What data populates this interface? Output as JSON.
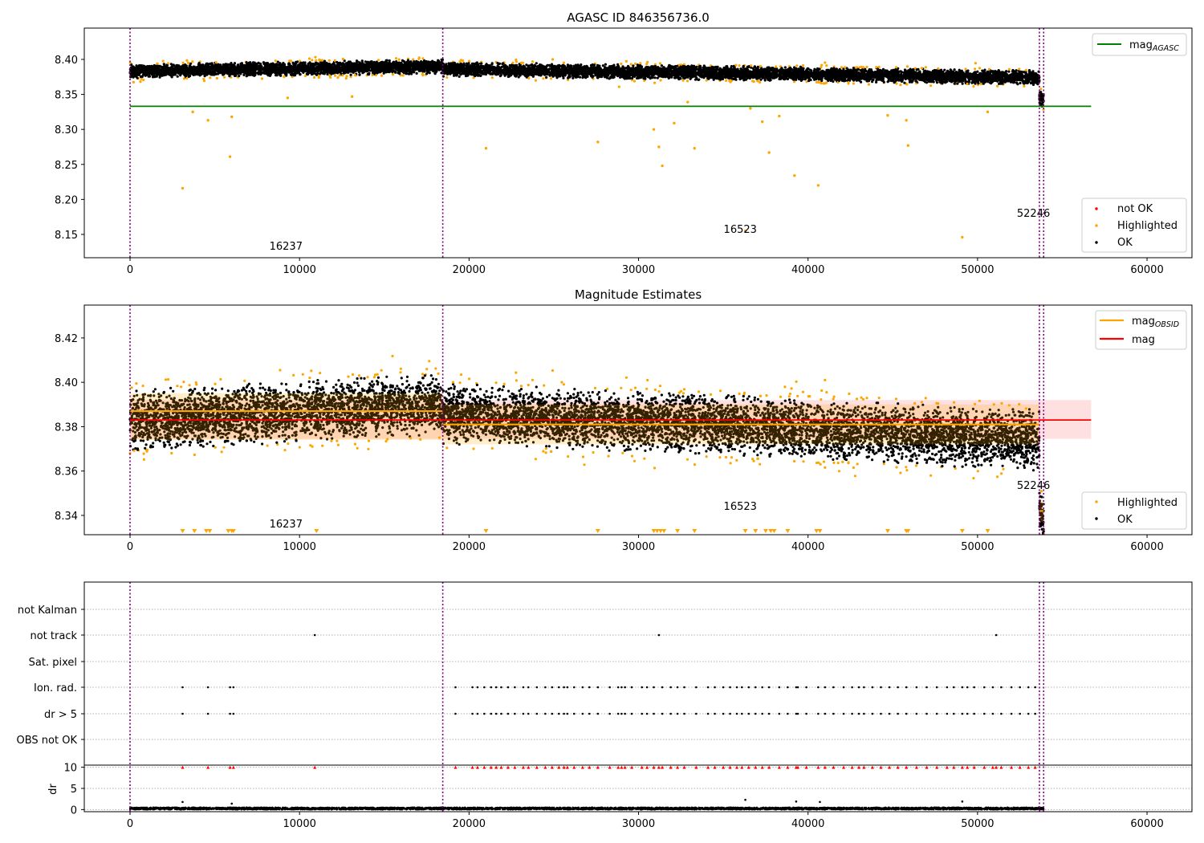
{
  "chart_data": [
    {
      "type": "scatter",
      "title": "AGASC ID 846356736.0",
      "xlim": [
        -2700,
        62650
      ],
      "ylim": [
        8.1167,
        8.4447
      ],
      "xticks": [
        0,
        10000,
        20000,
        30000,
        40000,
        50000,
        60000
      ],
      "yticks": [
        8.15,
        8.2,
        8.25,
        8.3,
        8.35,
        8.4
      ],
      "ytick_labels": [
        "8.15",
        "8.20",
        "8.25",
        "8.30",
        "8.35",
        "8.40"
      ],
      "vlines": [
        0,
        18450,
        53650,
        53900
      ],
      "hline": {
        "name": "mag_AGASC",
        "label": "mag",
        "sub": "AGASC",
        "y": 8.333,
        "xmax": 56700,
        "color": "#008000"
      },
      "segments": [
        {
          "x0": 0,
          "x1": 18450,
          "mean_start": 8.383,
          "mean_end": 8.39,
          "spread": 0.009
        },
        {
          "x0": 18450,
          "x1": 53650,
          "mean_start": 8.386,
          "mean_end": 8.374,
          "spread": 0.009
        },
        {
          "x0": 53650,
          "x1": 53900,
          "mean_start": 8.345,
          "mean_end": 8.34,
          "spread": 0.01
        }
      ],
      "highlighted_outliers": [
        [
          3100,
          8.216
        ],
        [
          5900,
          8.261
        ],
        [
          3700,
          8.325
        ],
        [
          4600,
          8.313
        ],
        [
          6000,
          8.318
        ],
        [
          9300,
          8.345
        ],
        [
          13100,
          8.347
        ],
        [
          21000,
          8.273
        ],
        [
          27600,
          8.282
        ],
        [
          30900,
          8.3
        ],
        [
          31200,
          8.275
        ],
        [
          31400,
          8.248
        ],
        [
          32100,
          8.309
        ],
        [
          33300,
          8.273
        ],
        [
          32900,
          8.339
        ],
        [
          36600,
          8.33
        ],
        [
          37300,
          8.311
        ],
        [
          37700,
          8.267
        ],
        [
          38300,
          8.319
        ],
        [
          39200,
          8.234
        ],
        [
          40600,
          8.22
        ],
        [
          44700,
          8.32
        ],
        [
          45800,
          8.313
        ],
        [
          45900,
          8.277
        ],
        [
          49100,
          8.146
        ],
        [
          50600,
          8.325
        ],
        [
          36300,
          8.155
        ]
      ],
      "annotations": [
        {
          "text": "16237",
          "x": 9200,
          "y": 8.128
        },
        {
          "text": "16523",
          "x": 36000,
          "y": 8.152
        },
        {
          "text": "52246",
          "x": 53300,
          "y": 8.175
        }
      ],
      "legend": {
        "placement": "lower-right",
        "entries": [
          {
            "label": "not OK",
            "color": "#ff0000"
          },
          {
            "label": "Highlighted",
            "color": "#ffa500"
          },
          {
            "label": "OK",
            "color": "#000000"
          }
        ]
      },
      "colors": {
        "ok": "#000000",
        "highlighted": "#ffa500",
        "not_ok": "#ff0000",
        "vline": "#800080"
      }
    },
    {
      "type": "scatter",
      "title": "Magnitude Estimates",
      "xlim": [
        -2700,
        62650
      ],
      "ylim": [
        8.3313,
        8.4348
      ],
      "xticks": [
        0,
        10000,
        20000,
        30000,
        40000,
        50000,
        60000
      ],
      "yticks": [
        8.34,
        8.36,
        8.38,
        8.4,
        8.42
      ],
      "ytick_labels": [
        "8.34",
        "8.36",
        "8.38",
        "8.40",
        "8.42"
      ],
      "vlines": [
        0,
        18450,
        53650,
        53900
      ],
      "mag": {
        "label": "mag",
        "y": 8.383,
        "band": [
          8.3745,
          8.392
        ],
        "xmax": 56700,
        "color": "#ff0000"
      },
      "mag_obsid": {
        "label": "mag",
        "sub": "OBSID",
        "color": "#ffa500",
        "segments": [
          {
            "x0": 0,
            "x1": 18450,
            "y": 8.387,
            "band": [
              8.374,
              8.395
            ]
          },
          {
            "x0": 18450,
            "x1": 53650,
            "y": 8.381,
            "band": [
              8.372,
              8.39
            ]
          },
          {
            "x0": 53650,
            "x1": 53900,
            "y": 8.342,
            "band": [
              8.337,
              8.347
            ]
          }
        ]
      },
      "segments": [
        {
          "x0": 0,
          "x1": 18450,
          "mean_start": 8.383,
          "mean_end": 8.39,
          "spread": 0.012
        },
        {
          "x0": 18450,
          "x1": 53650,
          "mean_start": 8.386,
          "mean_end": 8.374,
          "spread": 0.012
        },
        {
          "x0": 53650,
          "x1": 53900,
          "mean_start": 8.343,
          "mean_end": 8.338,
          "spread": 0.008
        }
      ],
      "below_range_x": [
        3100,
        3800,
        4500,
        4700,
        5800,
        6000,
        6100,
        11000,
        21000,
        27600,
        30900,
        31100,
        31300,
        31500,
        32300,
        33300,
        36300,
        36900,
        37500,
        37800,
        38000,
        38800,
        40500,
        40700,
        44700,
        45800,
        45900,
        49100,
        50600
      ],
      "annotations": [
        {
          "text": "16237",
          "x": 9200,
          "y": 8.3345
        },
        {
          "text": "16523",
          "x": 36000,
          "y": 8.3425
        },
        {
          "text": "52246",
          "x": 53300,
          "y": 8.352
        }
      ],
      "legend_top": {
        "placement": "upper-right"
      },
      "legend": {
        "placement": "lower-right",
        "entries": [
          {
            "label": "Highlighted",
            "color": "#ffa500"
          },
          {
            "label": "OK",
            "color": "#000000"
          }
        ]
      }
    },
    {
      "type": "scatter",
      "title": "",
      "xlim": [
        -2700,
        62650
      ],
      "xticks": [
        0,
        10000,
        20000,
        30000,
        40000,
        50000,
        60000
      ],
      "categories": [
        "not Kalman",
        "not track",
        "Sat. pixel",
        "Ion. rad.",
        "dr > 5",
        "OBS not OK"
      ],
      "flags": {
        "not track": [
          10900,
          31200,
          51100
        ],
        "Ion. rad.": [
          3100,
          4600,
          5900,
          6100,
          19200,
          20200,
          20500,
          20900,
          21300,
          21600,
          21900,
          22300,
          22700,
          23200,
          23500,
          24000,
          24500,
          24900,
          25300,
          25600,
          25800,
          26200,
          26700,
          27100,
          27600,
          28300,
          28800,
          29000,
          29200,
          29600,
          30200,
          30500,
          30900,
          31400,
          31900,
          32300,
          32700,
          33400,
          34100,
          34500,
          35000,
          35400,
          35800,
          36100,
          36500,
          36900,
          37300,
          37700,
          38300,
          38800,
          39300,
          39400,
          39900,
          40600,
          41000,
          41500,
          42100,
          42600,
          43000,
          43300,
          43800,
          44300,
          44800,
          45300,
          45800,
          46400,
          47000,
          47600,
          48200,
          48600,
          49100,
          49400,
          49800,
          50400,
          50900,
          51400,
          52000,
          52500,
          53000,
          53400
        ],
        "dr > 5": [
          3100,
          4600,
          5900,
          6100,
          19200,
          20200,
          20500,
          20900,
          21300,
          21600,
          21900,
          22300,
          22700,
          23200,
          23500,
          24000,
          24500,
          24900,
          25300,
          25600,
          25800,
          26200,
          26700,
          27100,
          27600,
          28300,
          28800,
          29000,
          29200,
          29600,
          30200,
          30500,
          30900,
          31400,
          31900,
          32300,
          32700,
          33400,
          34100,
          34500,
          35000,
          35400,
          35800,
          36100,
          36500,
          36900,
          37300,
          37700,
          38300,
          38800,
          39300,
          39400,
          39900,
          40600,
          41000,
          41500,
          42100,
          42600,
          43000,
          43300,
          43800,
          44300,
          44800,
          45300,
          45800,
          46400,
          47000,
          47600,
          48200,
          48600,
          49100,
          49400,
          49800,
          50400,
          50900,
          51400,
          52000,
          52500,
          53000,
          53400
        ]
      },
      "dr": {
        "ylabel": "dr",
        "ylim": [
          -0.5,
          10.5
        ],
        "yticks": [
          0,
          5,
          10
        ],
        "ytick_labels": [
          "0",
          "5",
          "10"
        ],
        "clip_value": 10,
        "typical_max": 0.5,
        "spikes": [
          [
            3100,
            1.8
          ],
          [
            6000,
            1.4
          ],
          [
            36300,
            2.3
          ],
          [
            39300,
            1.9
          ],
          [
            40700,
            1.8
          ],
          [
            49100,
            1.9
          ]
        ]
      }
    }
  ]
}
